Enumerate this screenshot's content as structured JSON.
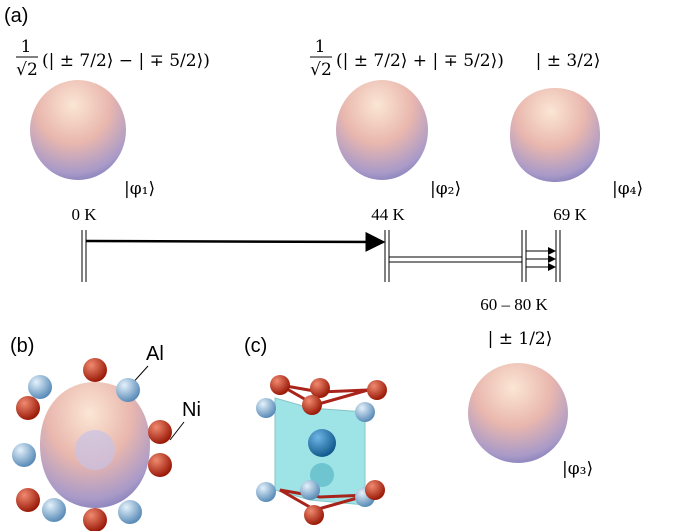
{
  "panel_a": {
    "label": "(a)",
    "states": [
      {
        "coef_num": "1",
        "coef_den": "√2",
        "ket": "(| ± 7/2⟩ − | ∓ 5/2⟩)",
        "name": "|φ₁⟩"
      },
      {
        "coef_num": "1",
        "coef_den": "√2",
        "ket": "(| ± 7/2⟩ + | ∓ 5/2⟩)",
        "name": "|φ₂⟩"
      },
      {
        "ket": "| ± 3/2⟩",
        "name": "|φ₄⟩"
      },
      {
        "ket": "| ± 1/2⟩",
        "name": "|φ₃⟩"
      }
    ],
    "temperatures": [
      "0 K",
      "44 K",
      "69 K",
      "60 – 80 K"
    ]
  },
  "panel_b": {
    "label": "(b)",
    "atoms": [
      "Al",
      "Ni"
    ]
  },
  "panel_c": {
    "label": "(c)"
  }
}
